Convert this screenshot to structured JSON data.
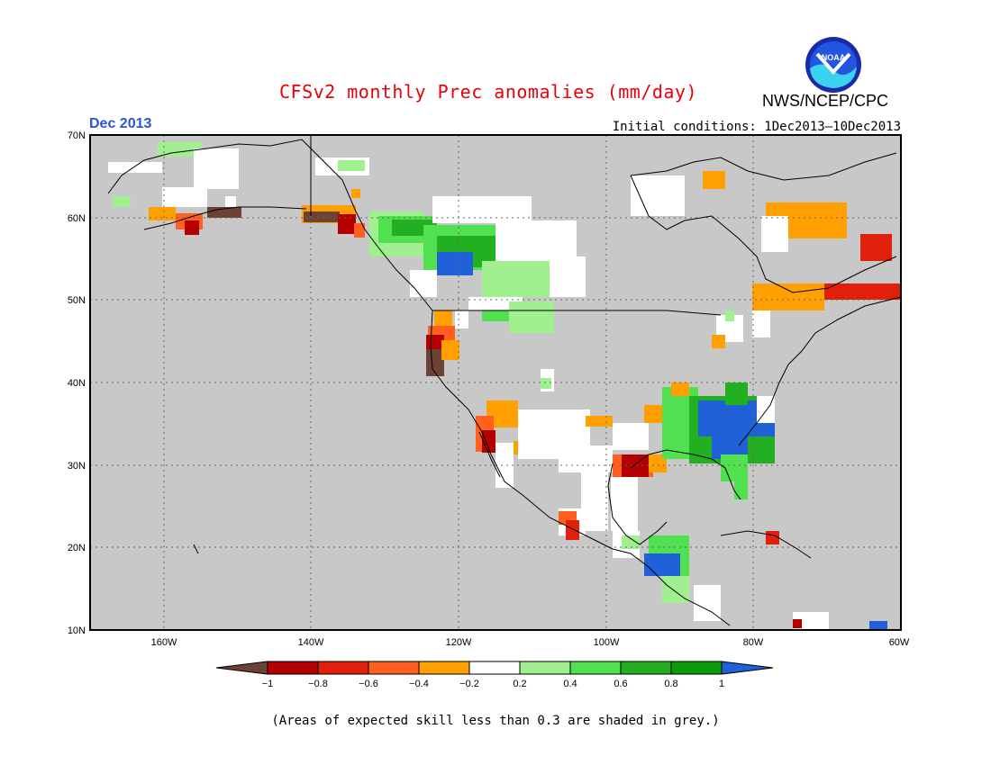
{
  "header": {
    "title": "CFSv2 monthly Prec anomalies (mm/day)",
    "agency": "NWS/NCEP/CPC",
    "logo_text": "NOAA",
    "month": "Dec 2013",
    "initial_conditions": "Initial conditions: 1Dec2013–10Dec2013"
  },
  "map": {
    "lon_range": [
      -170,
      -60
    ],
    "lat_range": [
      10,
      70
    ],
    "lat_ticks": [
      "70N",
      "60N",
      "50N",
      "40N",
      "30N",
      "20N",
      "10N"
    ],
    "lon_ticks": [
      "160W",
      "140W",
      "120W",
      "100W",
      "80W",
      "60W"
    ],
    "background_color": "#c8c8c8"
  },
  "colorbar": {
    "labels": [
      "−1",
      "−0.8",
      "−0.6",
      "−0.4",
      "−0.2",
      "0.2",
      "0.4",
      "0.6",
      "0.8",
      "1"
    ],
    "colors": [
      "#6b4234",
      "#b40000",
      "#e0200a",
      "#ff6020",
      "#ffa000",
      "#ffffff",
      "#a0f090",
      "#50e050",
      "#22b022",
      "#0a9a0a",
      "#2060d8"
    ]
  },
  "footer": {
    "note": "(Areas of expected skill less than 0.3 are shaded in grey.)"
  }
}
